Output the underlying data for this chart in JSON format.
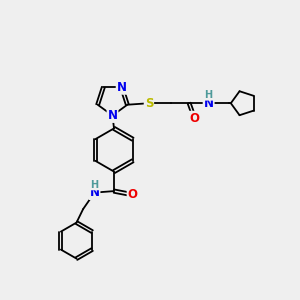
{
  "background_color": "#efefef",
  "atom_colors": {
    "C": "#000000",
    "N": "#0000ee",
    "O": "#ee0000",
    "S": "#bbbb00",
    "H": "#4e9a9a"
  },
  "figsize": [
    3.0,
    3.0
  ],
  "dpi": 100,
  "lw": 1.3,
  "fs": 8.5
}
